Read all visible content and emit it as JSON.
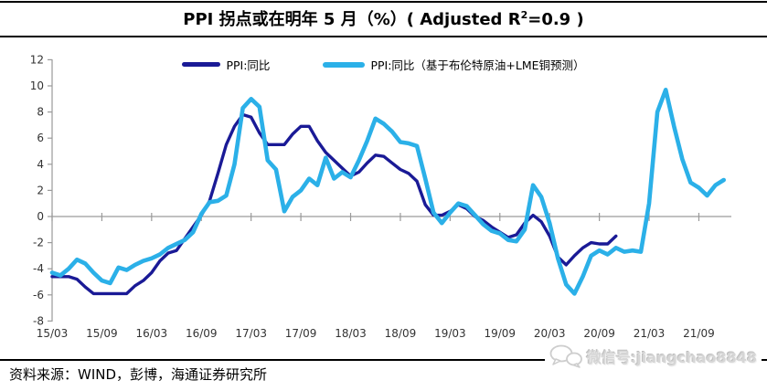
{
  "header": {
    "title_prefix": "PPI 拐点或在明年 5 月（%）( Adjusted R",
    "title_sup": "2",
    "title_suffix": "=0.9 )"
  },
  "legend": [
    {
      "label": "PPI:同比",
      "color": "#1A1A96"
    },
    {
      "label": "PPI:同比（基于布伦特原油+LME铜预测）",
      "color": "#2BB0E8"
    }
  ],
  "footer": {
    "source": "资料来源：WIND，彭博，海通证券研究所",
    "watermark": "微信号:jiangchao8848"
  },
  "chart_data": {
    "type": "line",
    "title": "PPI 拐点或在明年 5 月（%）( Adjusted R2=0.9 )",
    "x_unit": "month (YY/MM), monthly points since 2015/03",
    "x_tick_labels": [
      "15/03",
      "15/09",
      "16/03",
      "16/09",
      "17/03",
      "17/09",
      "18/03",
      "18/09",
      "19/03",
      "19/09",
      "20/03",
      "20/09",
      "21/03",
      "21/09"
    ],
    "x_tick_months": [
      0,
      6,
      12,
      18,
      24,
      30,
      36,
      42,
      48,
      54,
      60,
      66,
      72,
      78
    ],
    "y_ticks": [
      12,
      10,
      8,
      6,
      4,
      2,
      0,
      -2,
      -4,
      -6,
      -8
    ],
    "ylim": [
      -8,
      12
    ],
    "grid": "zero-line-only",
    "legend_position": "top-center",
    "axis_color": "#9A9A9A",
    "label_color": "#333333",
    "series": [
      {
        "name": "PPI:同比",
        "color": "#1A1A96",
        "start_label": "2015/03",
        "end_label": "2020/11",
        "start_month": 0,
        "values": [
          -4.6,
          -4.6,
          -4.6,
          -4.8,
          -5.4,
          -5.9,
          -5.9,
          -5.9,
          -5.9,
          -5.9,
          -5.3,
          -4.9,
          -4.3,
          -3.4,
          -2.8,
          -2.6,
          -1.7,
          -0.8,
          0.1,
          1.2,
          3.3,
          5.5,
          6.9,
          7.8,
          7.6,
          6.4,
          5.5,
          5.5,
          5.5,
          6.3,
          6.9,
          6.9,
          5.8,
          4.9,
          4.3,
          3.7,
          3.1,
          3.4,
          4.1,
          4.7,
          4.6,
          4.1,
          3.6,
          3.3,
          2.7,
          0.9,
          0.1,
          0.1,
          0.4,
          0.9,
          0.6,
          0.0,
          -0.3,
          -0.8,
          -1.2,
          -1.6,
          -1.4,
          -0.5,
          0.1,
          -0.4,
          -1.5,
          -3.1,
          -3.7,
          -3.0,
          -2.4,
          -2.0,
          -2.1,
          -2.1,
          -1.5
        ]
      },
      {
        "name": "PPI:同比（基于布伦特原油+LME铜预测）",
        "color": "#2BB0E8",
        "start_label": "2015/03",
        "end_label": "2021/12",
        "start_month": 0,
        "values": [
          -4.3,
          -4.5,
          -4.0,
          -3.3,
          -3.6,
          -4.3,
          -4.9,
          -5.1,
          -3.9,
          -4.1,
          -3.7,
          -3.4,
          -3.2,
          -2.9,
          -2.4,
          -2.1,
          -1.8,
          -1.2,
          0.2,
          1.1,
          1.2,
          1.6,
          4.0,
          8.3,
          9.0,
          8.4,
          4.3,
          3.6,
          0.4,
          1.5,
          2.0,
          2.9,
          2.4,
          4.5,
          2.9,
          3.4,
          3.0,
          4.3,
          5.8,
          7.5,
          7.1,
          6.5,
          5.7,
          5.6,
          5.4,
          2.9,
          0.3,
          -0.5,
          0.3,
          1.0,
          0.8,
          0.1,
          -0.6,
          -1.1,
          -1.3,
          -1.8,
          -1.9,
          -1.0,
          2.4,
          1.5,
          -0.5,
          -3.2,
          -5.2,
          -5.9,
          -4.6,
          -3.0,
          -2.6,
          -2.9,
          -2.4,
          -2.7,
          -2.6,
          -2.7,
          1.0,
          8.0,
          9.7,
          6.9,
          4.4,
          2.6,
          2.2,
          1.6,
          2.4,
          2.8
        ]
      }
    ]
  }
}
